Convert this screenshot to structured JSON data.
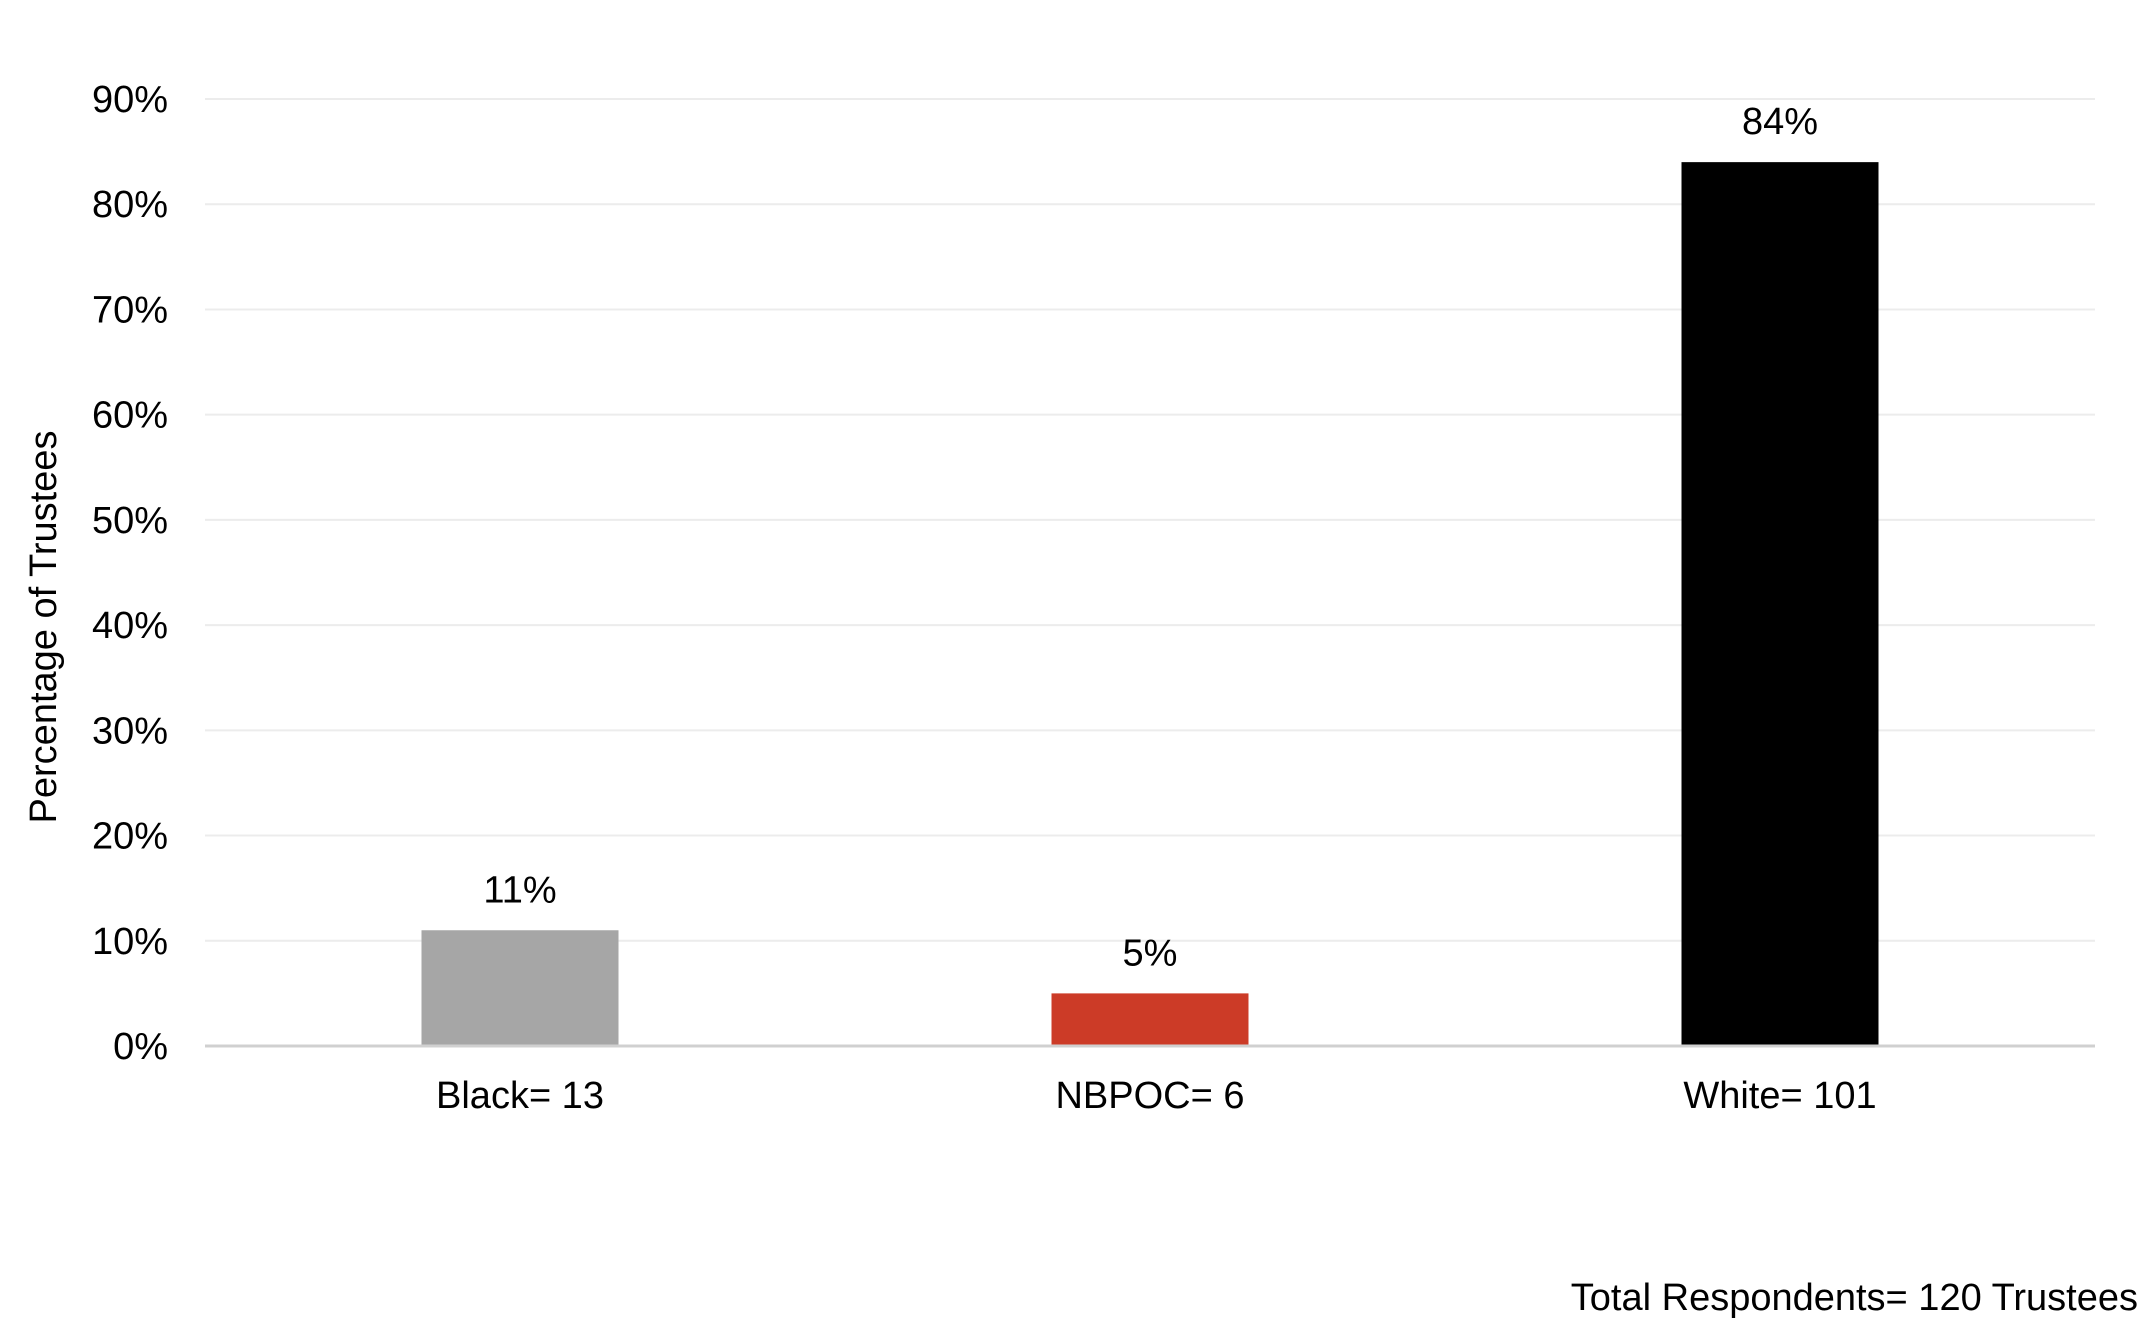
{
  "chart_data": {
    "type": "bar",
    "categories": [
      "Black= 13",
      "NBPOC= 6",
      "White= 101"
    ],
    "values": [
      11,
      5,
      84
    ],
    "data_labels": [
      "11%",
      "5%",
      "84%"
    ],
    "bar_colors": [
      "#a6a6a6",
      "#cc3b27",
      "#000000"
    ],
    "title": "",
    "xlabel": "",
    "ylabel": "Percentage of Trustees",
    "ylim": [
      0,
      90
    ],
    "yticks": [
      0,
      10,
      20,
      30,
      40,
      50,
      60,
      70,
      80,
      90
    ],
    "ytick_labels": [
      "0%",
      "10%",
      "20%",
      "30%",
      "40%",
      "50%",
      "60%",
      "70%",
      "80%",
      "90%"
    ],
    "grid": true,
    "legend": "none",
    "footnote": "Total Respondents= 120 Trustees"
  }
}
